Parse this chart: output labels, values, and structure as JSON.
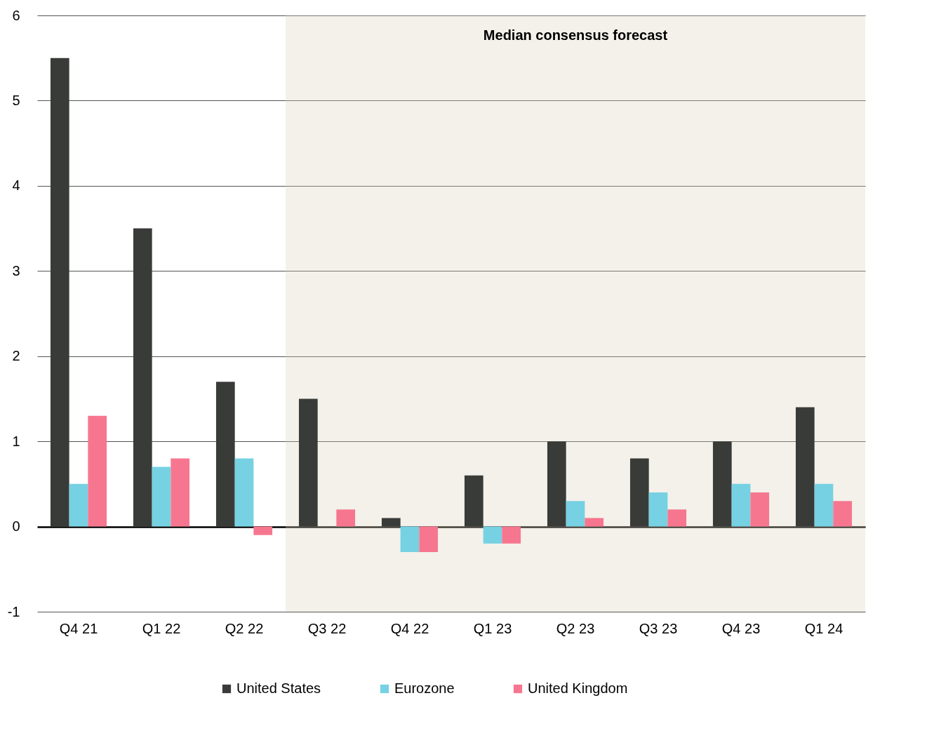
{
  "chart_data": {
    "type": "bar",
    "categories": [
      "Q4 21",
      "Q1 22",
      "Q2 22",
      "Q3 22",
      "Q4 22",
      "Q1 23",
      "Q2 23",
      "Q3 23",
      "Q4 23",
      "Q1 24"
    ],
    "series": [
      {
        "name": "United States",
        "color": "#393b38",
        "values": [
          5.5,
          3.5,
          1.7,
          1.5,
          0.1,
          0.6,
          1.0,
          0.8,
          1.0,
          1.4
        ]
      },
      {
        "name": "Eurozone",
        "color": "#76d1e3",
        "values": [
          0.5,
          0.7,
          0.8,
          0,
          -0.3,
          -0.2,
          0.3,
          0.4,
          0.5,
          0.5
        ]
      },
      {
        "name": "United Kingdom",
        "color": "#f7768f",
        "values": [
          1.3,
          0.8,
          -0.1,
          0.2,
          -0.3,
          -0.2,
          0.1,
          0.2,
          0.4,
          0.3
        ]
      }
    ],
    "ylim": [
      -1,
      6
    ],
    "yticks": [
      -1,
      0,
      1,
      2,
      3,
      4,
      5,
      6
    ],
    "grid": "y",
    "legend": "bottom",
    "bands": [
      {
        "axis": "x",
        "from": "Q3 22",
        "to": "Q1 24",
        "label": "Median consensus forecast",
        "color": "#d8cfb8"
      }
    ]
  }
}
